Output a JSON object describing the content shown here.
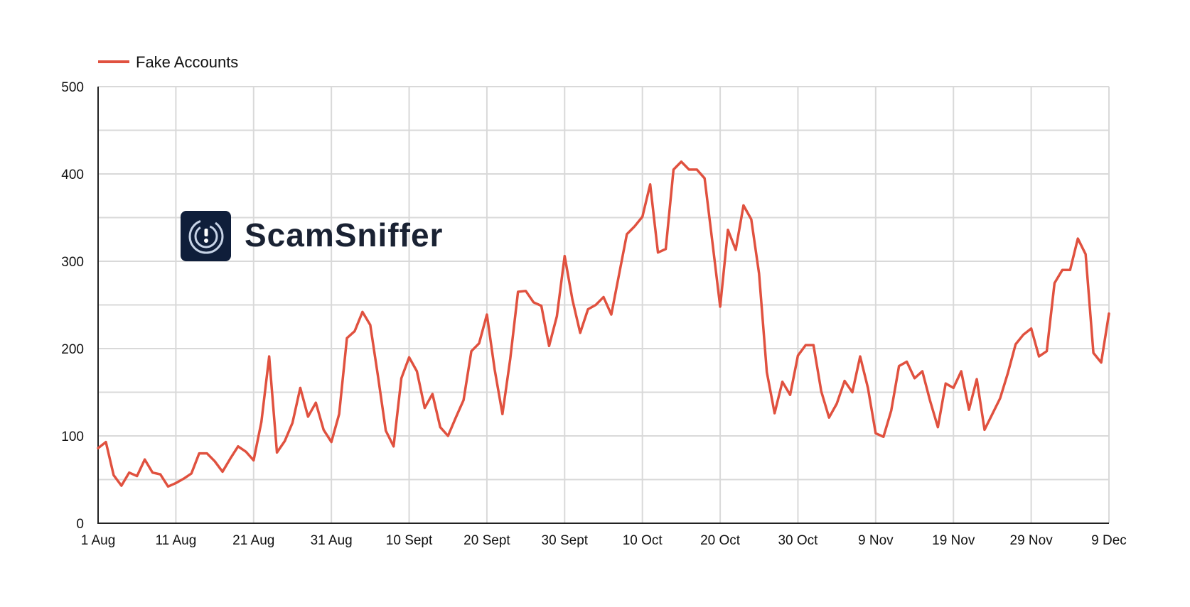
{
  "legend": {
    "label": "Fake Accounts",
    "position": "top-left"
  },
  "brand": {
    "name": "ScamSniffer",
    "icon": "scamsniffer-logo-icon"
  },
  "colors": {
    "series": "#e0513f",
    "grid": "#d9d9d9",
    "axis": "#222222",
    "brand_text": "#1a2233",
    "logo_bg": "#0f1e3a"
  },
  "chart_data": {
    "type": "line",
    "title": "",
    "xlabel": "",
    "ylabel": "",
    "ylim": [
      0,
      500
    ],
    "y_ticks": [
      "0",
      "100",
      "200",
      "300",
      "400",
      "500"
    ],
    "y_tick_values": [
      0,
      100,
      200,
      300,
      400,
      500
    ],
    "x_tick_labels": [
      "1 Aug",
      "11 Aug",
      "21 Aug",
      "31 Aug",
      "10 Sept",
      "20 Sept",
      "30 Sept",
      "10 Oct",
      "20 Oct",
      "30 Oct",
      "9 Nov",
      "19 Nov",
      "29 Nov",
      "9 Dec"
    ],
    "x_start": "1 Aug",
    "x_end": "9 Dec",
    "grid": true,
    "legend_placement": "top-left",
    "series": [
      {
        "name": "Fake Accounts",
        "color": "#e0513f",
        "values": [
          86,
          93,
          55,
          43,
          58,
          54,
          73,
          58,
          56,
          42,
          46,
          51,
          57,
          80,
          80,
          71,
          59,
          74,
          88,
          82,
          72,
          116,
          191,
          81,
          94,
          115,
          155,
          122,
          138,
          107,
          93,
          125,
          212,
          220,
          242,
          227,
          168,
          106,
          88,
          166,
          190,
          174,
          132,
          148,
          110,
          100,
          121,
          141,
          197,
          206,
          239,
          176,
          125,
          188,
          265,
          266,
          253,
          249,
          203,
          237,
          306,
          256,
          218,
          245,
          250,
          259,
          239,
          285,
          331,
          340,
          351,
          388,
          310,
          314,
          405,
          414,
          405,
          405,
          395,
          322,
          248,
          336,
          313,
          364,
          348,
          286,
          173,
          126,
          162,
          147,
          192,
          204,
          204,
          151,
          121,
          137,
          163,
          150,
          191,
          155,
          103,
          99,
          129,
          180,
          185,
          166,
          174,
          140,
          110,
          160,
          155,
          174,
          130,
          165,
          107,
          125,
          143,
          172,
          205,
          216,
          223,
          191,
          197,
          275,
          290,
          290,
          326,
          308,
          195,
          184,
          240
        ]
      }
    ]
  }
}
